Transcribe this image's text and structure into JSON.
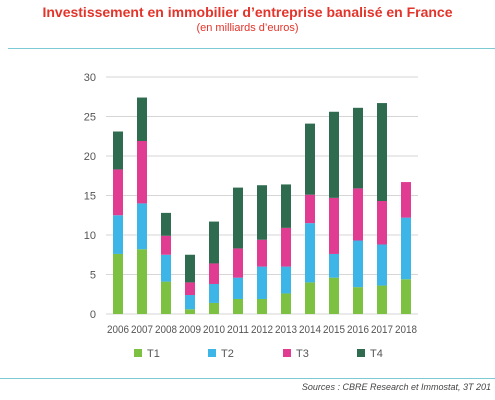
{
  "header": {
    "title": "Investissement en immobilier d’entreprise banalisé en France",
    "subtitle": "(en milliards d’euros)"
  },
  "footer": {
    "source": "Sources : CBRE Research et Immostat, 3T 201"
  },
  "chart_data": {
    "type": "bar",
    "stacked": true,
    "categories": [
      "2006",
      "2007",
      "2008",
      "2009",
      "2010",
      "2011",
      "2012",
      "2013",
      "2014",
      "2015",
      "2016",
      "2017",
      "2018"
    ],
    "series": [
      {
        "name": "T1",
        "color": "#7dc142",
        "values": [
          7.6,
          8.2,
          4.1,
          0.6,
          1.4,
          1.9,
          1.9,
          2.6,
          4.0,
          4.6,
          3.4,
          3.6,
          4.4
        ]
      },
      {
        "name": "T2",
        "color": "#3db5e6",
        "values": [
          4.9,
          5.8,
          3.4,
          1.8,
          2.4,
          2.7,
          4.1,
          3.4,
          7.5,
          3.0,
          5.9,
          5.2,
          7.8
        ]
      },
      {
        "name": "T3",
        "color": "#e03c92",
        "values": [
          5.8,
          7.9,
          2.4,
          1.6,
          2.6,
          3.7,
          3.4,
          4.9,
          3.6,
          7.1,
          6.6,
          5.5,
          4.5
        ]
      },
      {
        "name": "T4",
        "color": "#2e6b4f",
        "values": [
          4.8,
          5.5,
          2.9,
          3.5,
          5.3,
          7.7,
          6.9,
          5.5,
          9.0,
          10.9,
          10.2,
          12.4,
          0
        ]
      }
    ],
    "xlabel": "",
    "ylabel": "",
    "ylim": [
      0,
      30
    ],
    "yticks": [
      0,
      5,
      10,
      15,
      20,
      25,
      30
    ],
    "grid": true,
    "legend_position": "bottom"
  }
}
